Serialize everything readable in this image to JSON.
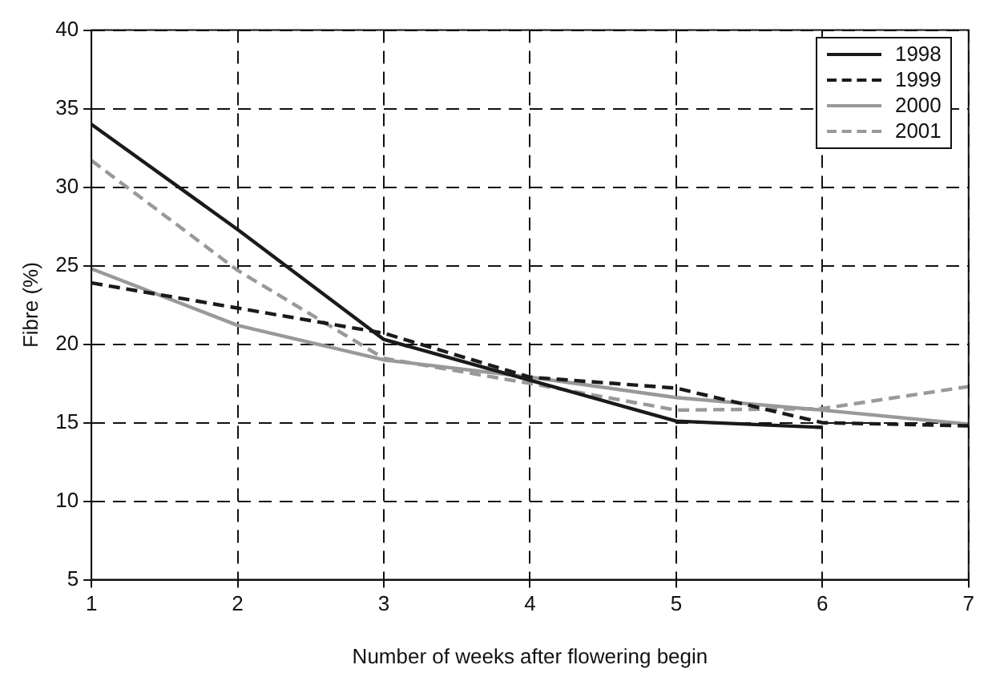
{
  "chart_data": {
    "type": "line",
    "xlabel": "Number of weeks after flowering begin",
    "ylabel": "Fibre (%)",
    "x": [
      1,
      2,
      3,
      4,
      5,
      6,
      7
    ],
    "xlim": [
      1,
      7
    ],
    "xticks": [
      1,
      2,
      3,
      4,
      5,
      6,
      7
    ],
    "ylim": [
      5,
      40
    ],
    "yticks": [
      5,
      10,
      15,
      20,
      25,
      30,
      35,
      40
    ],
    "grid": true,
    "legend": "top right",
    "marker": "none",
    "series": [
      {
        "name": "1998",
        "color": "#1a1a1a",
        "line_style": "solid",
        "values": [
          34,
          27.3,
          20.3,
          17.7,
          15.1,
          14.7,
          null
        ]
      },
      {
        "name": "1999",
        "color": "#1a1a1a",
        "line_style": "dashed",
        "values": [
          23.9,
          22.3,
          20.7,
          17.9,
          17.2,
          15.0,
          14.8
        ]
      },
      {
        "name": "2000",
        "color": "#999999",
        "line_style": "solid",
        "values": [
          24.8,
          21.2,
          19.0,
          17.9,
          16.6,
          15.8,
          14.9
        ]
      },
      {
        "name": "2001",
        "color": "#999999",
        "line_style": "dashed",
        "values": [
          31.7,
          24.7,
          19.1,
          17.5,
          15.8,
          15.9,
          17.3
        ]
      }
    ]
  }
}
